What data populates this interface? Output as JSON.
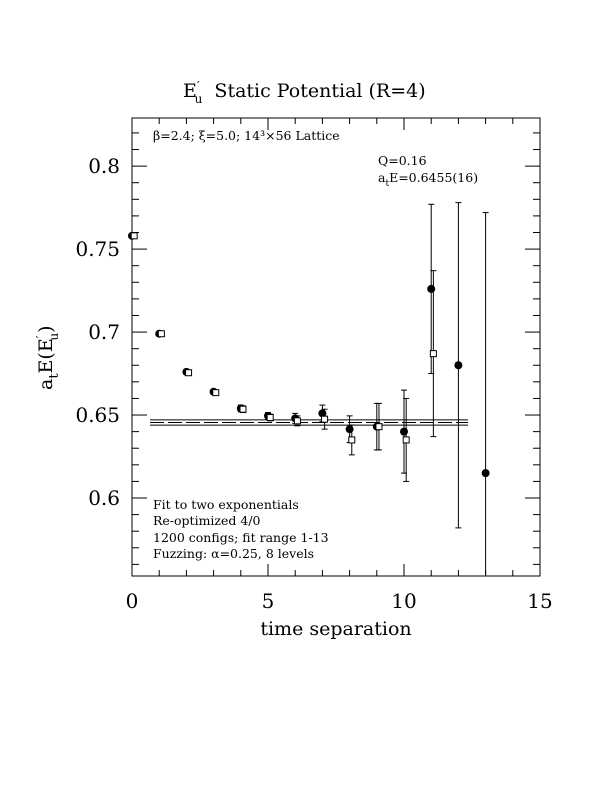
{
  "chart_data": {
    "type": "scatter",
    "title_main": "E",
    "title_sup": "′",
    "title_sub": "u",
    "title_rest": "  Static Potential (R=4)",
    "xlabel": "time separation",
    "ylabel_prefix": "a",
    "ylabel_sub1": "t",
    "ylabel_mid": "E(E",
    "ylabel_sup": "′",
    "ylabel_sub2": "u",
    "ylabel_end": ")",
    "xlim": [
      0,
      15
    ],
    "ylim": [
      0.553,
      0.829
    ],
    "xticks": [
      0,
      5,
      10,
      15
    ],
    "xtick_labels": [
      "0",
      "5",
      "10",
      "15"
    ],
    "yticks": [
      0.6,
      0.65,
      0.7,
      0.75,
      0.8
    ],
    "ytick_labels": [
      "0.6",
      "0.65",
      "0.7",
      "0.75",
      "0.8"
    ],
    "annotation_top_left": "β=2.4; ξ=5.0; 14³×56 Lattice",
    "annotation_q": "Q=0.16",
    "annotation_fit_prefix": "a",
    "annotation_fit_sub": "t",
    "annotation_fit_rest": "E=0.6455(16)",
    "legend_lines": [
      "Fit to two exponentials",
      "Re-optimized 4/0",
      "1200 configs; fit range 1-13",
      "Fuzzing: α=0.25, 8 levels"
    ],
    "fit": {
      "value": 0.6455,
      "error": 0.0016,
      "x_range": [
        1,
        13
      ]
    },
    "series": [
      {
        "marker": "filled-circle",
        "points": [
          {
            "x": 0,
            "y": 0.758,
            "err": 0.001
          },
          {
            "x": 1,
            "y": 0.699,
            "err": 0.001
          },
          {
            "x": 2,
            "y": 0.676,
            "err": 0.0015
          },
          {
            "x": 3,
            "y": 0.664,
            "err": 0.0015
          },
          {
            "x": 4,
            "y": 0.654,
            "err": 0.002
          },
          {
            "x": 5,
            "y": 0.6495,
            "err": 0.002
          },
          {
            "x": 6,
            "y": 0.648,
            "err": 0.003
          },
          {
            "x": 7,
            "y": 0.651,
            "err": 0.005
          },
          {
            "x": 8,
            "y": 0.6415,
            "err": 0.008
          },
          {
            "x": 9,
            "y": 0.643,
            "err": 0.014
          },
          {
            "x": 10,
            "y": 0.64,
            "err": 0.025
          },
          {
            "x": 11,
            "y": 0.726,
            "err": 0.051
          },
          {
            "x": 12,
            "y": 0.68,
            "err": 0.098
          },
          {
            "x": 13,
            "y": 0.615,
            "err": 0.157
          }
        ]
      },
      {
        "marker": "open-square",
        "points": [
          {
            "x": 0.08,
            "y": 0.758,
            "err": 0.001
          },
          {
            "x": 1.08,
            "y": 0.699,
            "err": 0.001
          },
          {
            "x": 2.08,
            "y": 0.6755,
            "err": 0.0015
          },
          {
            "x": 3.08,
            "y": 0.6635,
            "err": 0.0015
          },
          {
            "x": 4.08,
            "y": 0.6535,
            "err": 0.002
          },
          {
            "x": 5.08,
            "y": 0.6485,
            "err": 0.002
          },
          {
            "x": 6.08,
            "y": 0.6465,
            "err": 0.003
          },
          {
            "x": 7.08,
            "y": 0.6475,
            "err": 0.006
          },
          {
            "x": 8.08,
            "y": 0.635,
            "err": 0.009
          },
          {
            "x": 9.08,
            "y": 0.643,
            "err": 0.014
          },
          {
            "x": 10.08,
            "y": 0.635,
            "err": 0.025
          },
          {
            "x": 11.08,
            "y": 0.687,
            "err": 0.05
          }
        ]
      }
    ]
  }
}
